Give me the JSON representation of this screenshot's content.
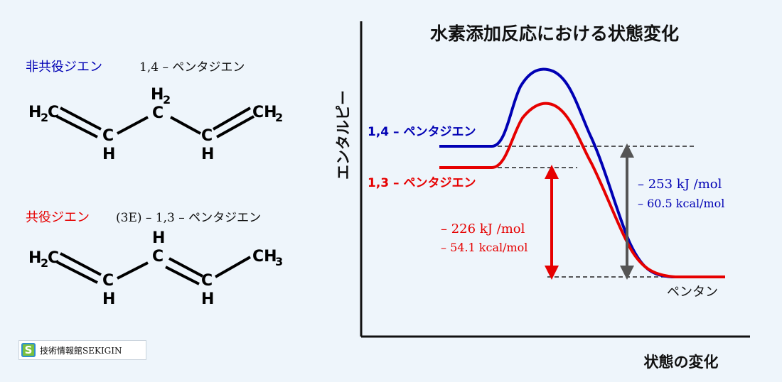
{
  "chart": {
    "title": "水素添加反応における状態変化",
    "y_axis_label": "エンタルピー",
    "x_axis_label": "状態の変化",
    "colors": {
      "diene14": "#0000b4",
      "diene13": "#e60000",
      "arrow_gray": "#555555",
      "axis": "#111111"
    }
  },
  "curves": {
    "diene14_label": "1,4 – ペンタジエン",
    "diene13_label": "1,3 – ペンタジエン",
    "product_label": "ペンタン"
  },
  "energies": {
    "diene14_kj": "– 253 kJ /mol",
    "diene14_kcal": "– 60.5 kcal/mol",
    "diene13_kj": "– 226 kJ /mol",
    "diene13_kcal": "– 54.1 kcal/mol"
  },
  "molecules": {
    "nonconjugated": {
      "type_label": "非共役ジエン",
      "name": "1,4 – ペンタジエン",
      "atoms": {
        "h2c_left": "H",
        "h2c_left_sub": "2",
        "h2c_left_c": "C",
        "ch_a_c": "C",
        "ch_a_h": "H",
        "ch2_mid_h": "H",
        "ch2_mid_sub": "2",
        "ch2_mid_c": "C",
        "ch_b_c": "C",
        "ch_b_h": "H",
        "ch2_right": "CH",
        "ch2_right_sub": "2"
      }
    },
    "conjugated": {
      "type_label": "共役ジエン",
      "name": "(3E) – 1,3 – ペンタジエン",
      "atoms": {
        "h2c_left": "H",
        "h2c_left_sub": "2",
        "h2c_left_c": "C",
        "ch_a_c": "C",
        "ch_a_h": "H",
        "ch_mid_h": "H",
        "ch_mid_c": "C",
        "ch_b_c": "C",
        "ch_b_h": "H",
        "ch3_right": "CH",
        "ch3_right_sub": "3"
      }
    }
  },
  "logo": {
    "mark": "S",
    "text": "技術情報館SEKIGIN"
  }
}
